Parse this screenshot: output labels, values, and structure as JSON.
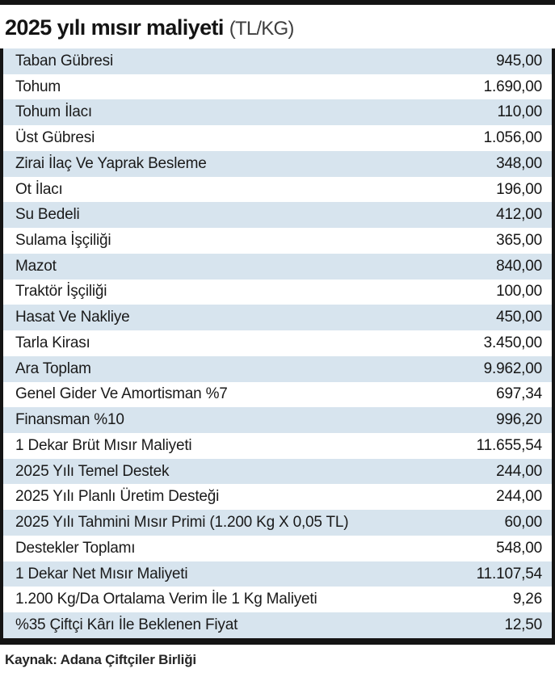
{
  "header": {
    "title": "2025 yılı mısır maliyeti",
    "unit": "(TL/KG)"
  },
  "chart_data": {
    "type": "table",
    "title": "2025 yılı mısır maliyeti",
    "unit": "TL/KG",
    "rows": [
      {
        "label": "Taban Gübresi",
        "value": "945,00"
      },
      {
        "label": "Tohum",
        "value": "1.690,00"
      },
      {
        "label": "Tohum İlacı",
        "value": "110,00"
      },
      {
        "label": "Üst Gübresi",
        "value": "1.056,00"
      },
      {
        "label": "Zirai İlaç Ve Yaprak Besleme",
        "value": "348,00"
      },
      {
        "label": "Ot İlacı",
        "value": "196,00"
      },
      {
        "label": "Su Bedeli",
        "value": "412,00"
      },
      {
        "label": "Sulama İşçiliği",
        "value": "365,00"
      },
      {
        "label": "Mazot",
        "value": "840,00"
      },
      {
        "label": "Traktör İşçiliği",
        "value": "100,00"
      },
      {
        "label": "Hasat Ve Nakliye",
        "value": "450,00"
      },
      {
        "label": "Tarla Kirası",
        "value": "3.450,00"
      },
      {
        "label": "Ara Toplam",
        "value": "9.962,00"
      },
      {
        "label": "Genel Gider Ve Amortisman %7",
        "value": "697,34"
      },
      {
        "label": "Finansman %10",
        "value": "996,20"
      },
      {
        "label": "1 Dekar Brüt Mısır Maliyeti",
        "value": "11.655,54"
      },
      {
        "label": "2025 Yılı Temel Destek",
        "value": "244,00"
      },
      {
        "label": "2025 Yılı Planlı Üretim Desteği",
        "value": "244,00"
      },
      {
        "label": "2025 Yılı Tahmini Mısır Primi (1.200 Kg X 0,05 TL)",
        "value": "60,00"
      },
      {
        "label": "Destekler Toplamı",
        "value": "548,00"
      },
      {
        "label": "1 Dekar Net Mısır Maliyeti",
        "value": "11.107,54"
      },
      {
        "label": "1.200 Kg/Da Ortalama Verim İle 1 Kg Maliyeti",
        "value": "9,26"
      },
      {
        "label": "%35 Çiftçi Kârı İle Beklenen Fiyat",
        "value": "12,50"
      }
    ],
    "source": "Kaynak: Adana Çiftçiler Birliği"
  },
  "footer": {
    "source": "Kaynak: Adana Çiftçiler Birliği"
  },
  "colors": {
    "stripe": "#d7e4ee",
    "rule": "#141414"
  }
}
